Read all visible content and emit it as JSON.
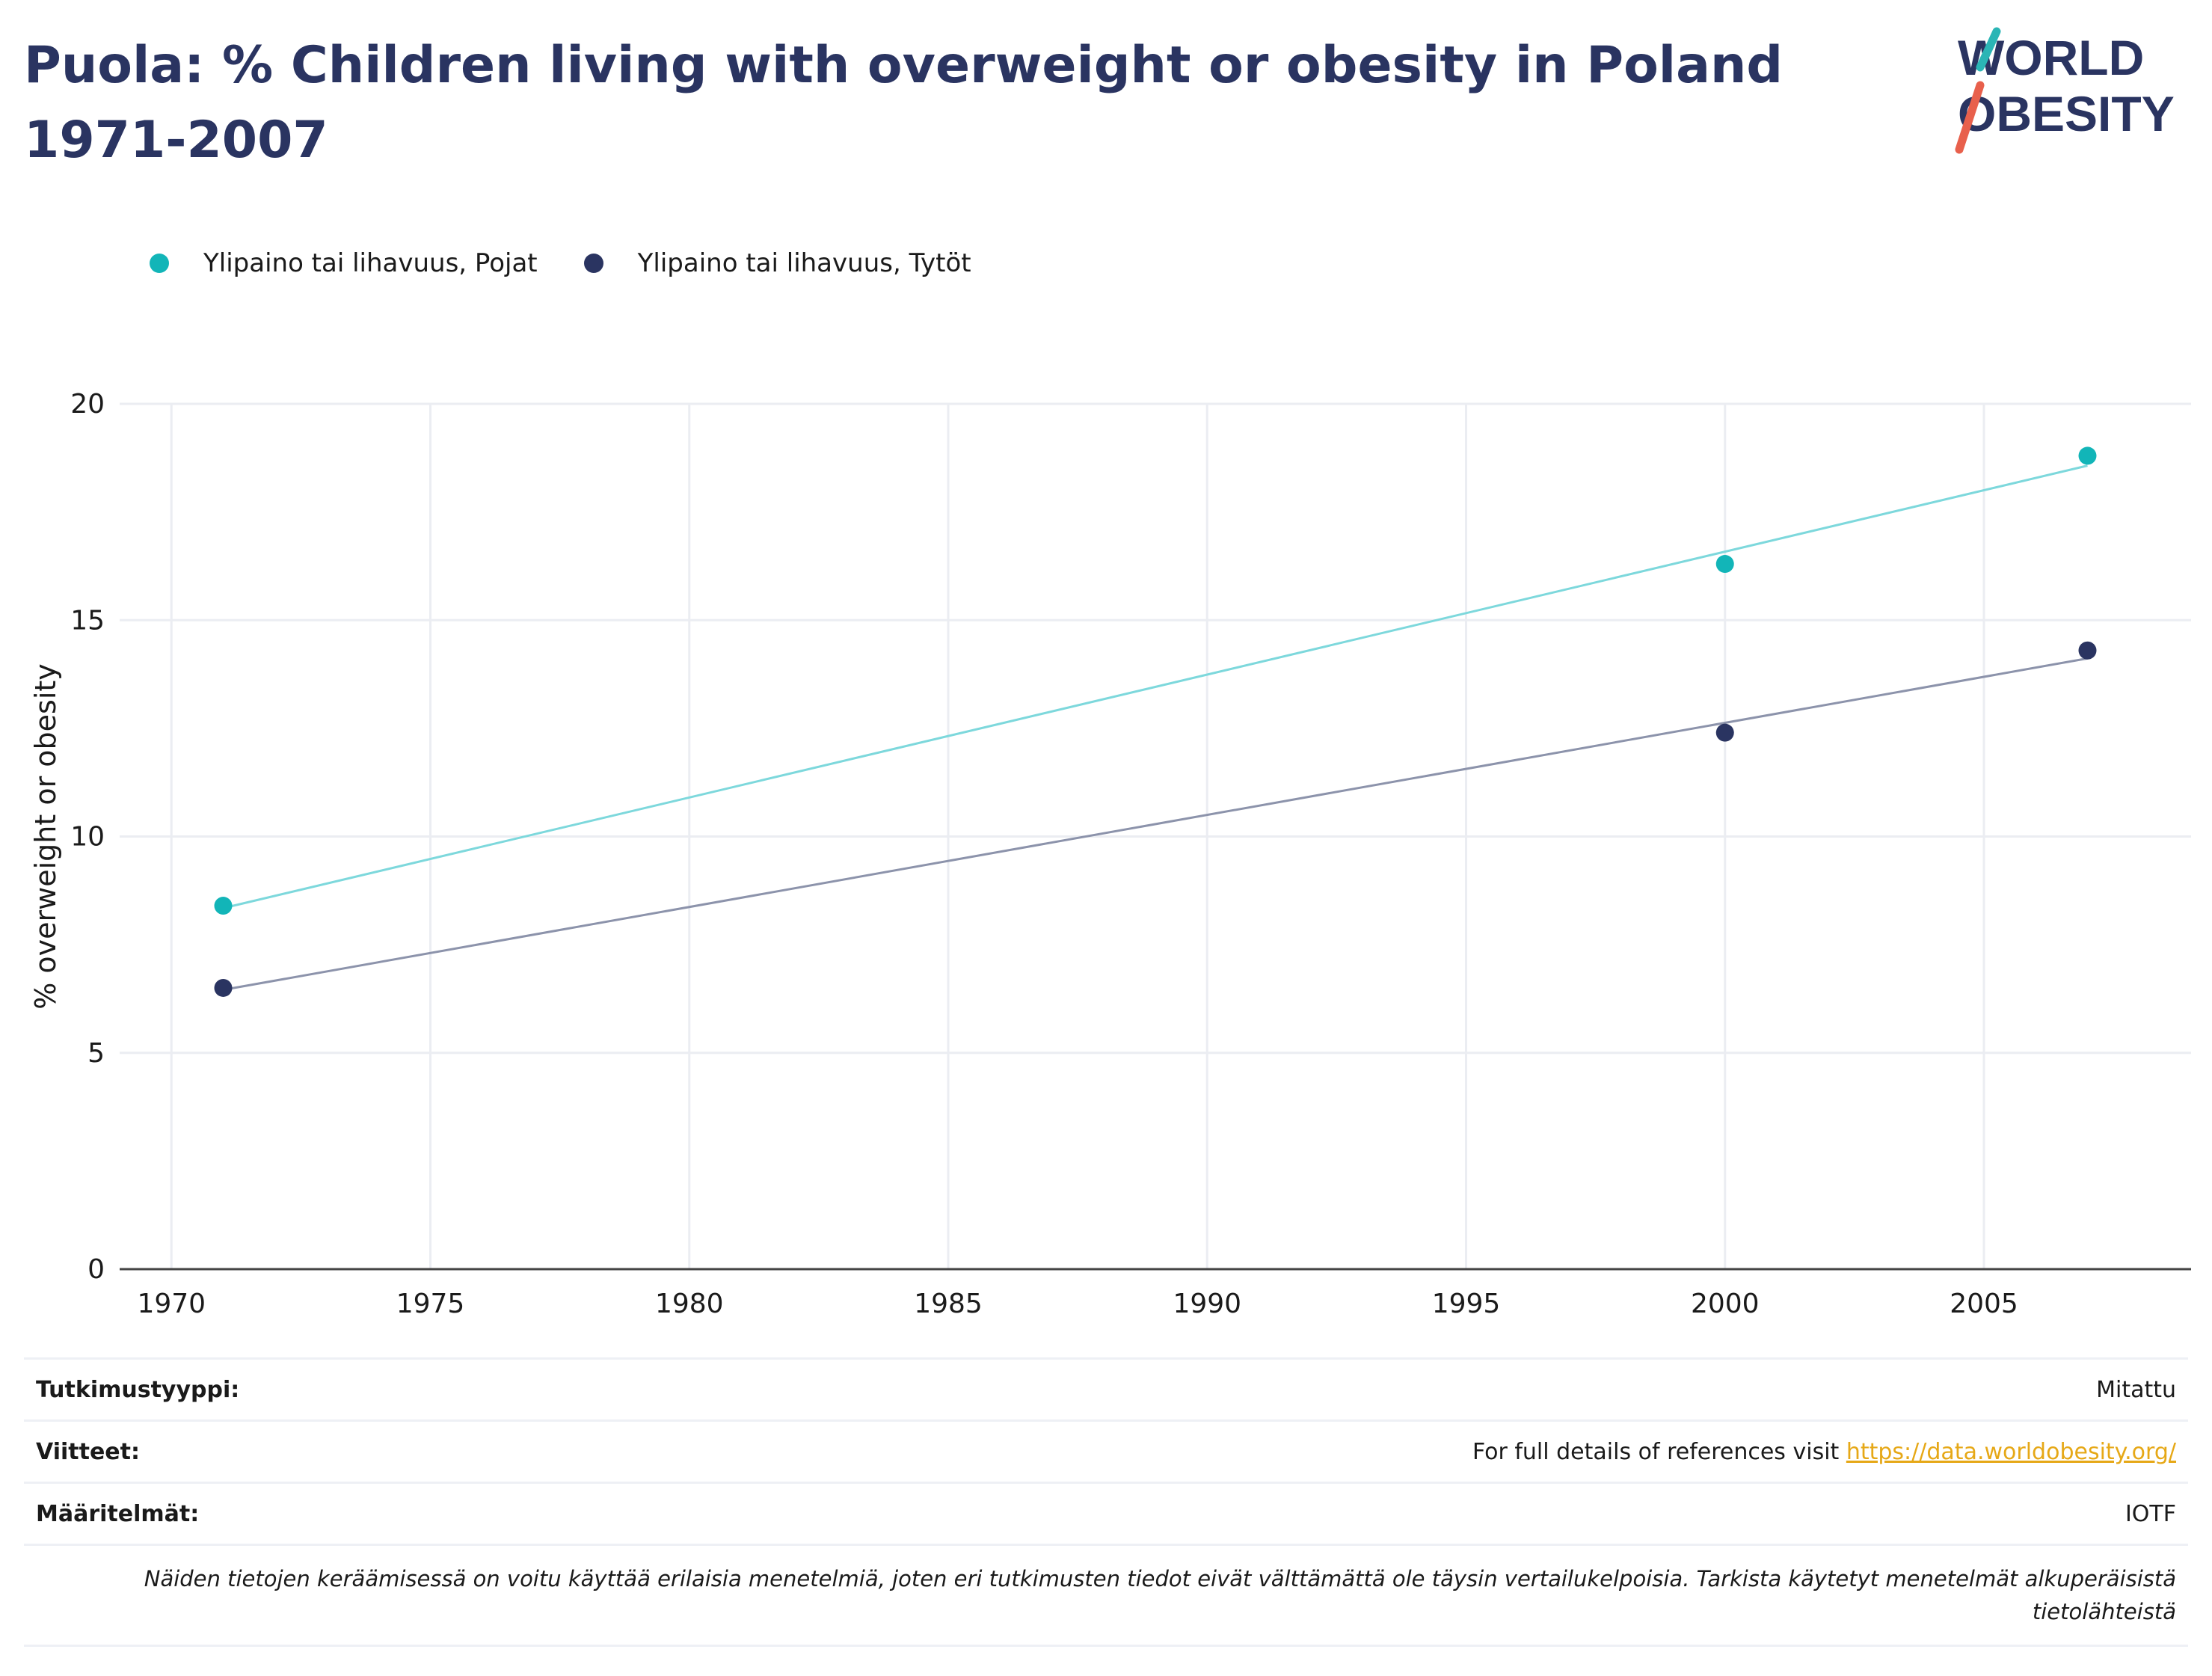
{
  "title": "Puola: % Children living with overweight or obesity in Poland 1971-2007",
  "logo": {
    "line1": "WORLD",
    "line2": "OBESITY",
    "colors": {
      "text": "#2a3461",
      "slash_top": "#2bb5b5",
      "slash_bottom": "#e8604c"
    }
  },
  "legend": [
    {
      "label": "Ylipaino tai lihavuus, Pojat",
      "color": "#12b5b8"
    },
    {
      "label": "Ylipaino tai lihavuus, Tytöt",
      "color": "#2a3461"
    }
  ],
  "chart_data": {
    "type": "scatter",
    "title": "Puola: % Children living with overweight or obesity in Poland 1971-2007",
    "xlabel": "",
    "ylabel": "% overweight or obesity",
    "xlim": [
      1969,
      2009
    ],
    "ylim": [
      0,
      20
    ],
    "x_ticks": [
      1970,
      1975,
      1980,
      1985,
      1990,
      1995,
      2000,
      2005
    ],
    "y_ticks": [
      0,
      5,
      10,
      15,
      20
    ],
    "grid": true,
    "legend_position": "top-left",
    "series": [
      {
        "name": "Ylipaino tai lihavuus, Pojat",
        "color": "#12b5b8",
        "trend_color": "#7dd8dc",
        "x": [
          1971,
          2000,
          2007
        ],
        "y": [
          8.4,
          16.3,
          18.8
        ],
        "trendline": true
      },
      {
        "name": "Ylipaino tai lihavuus, Tytöt",
        "color": "#2a3461",
        "trend_color": "#8c93ab",
        "x": [
          1971,
          2000,
          2007
        ],
        "y": [
          6.5,
          12.4,
          14.3
        ],
        "trendline": true
      }
    ]
  },
  "info": [
    {
      "key": "Tutkimustyyppi:",
      "value": "Mitattu"
    },
    {
      "key": "Viitteet:",
      "value": "For full details of references visit ",
      "link": "https://data.worldobesity.org/"
    },
    {
      "key": "Määritelmät:",
      "value": "IOTF"
    }
  ],
  "note": "Näiden tietojen keräämisessä on voitu käyttää erilaisia menetelmiä, joten eri tutkimusten tiedot eivät välttämättä ole täysin vertailukelpoisia. Tarkista käytetyt menetelmät alkuperäisistä tietolähteistä"
}
